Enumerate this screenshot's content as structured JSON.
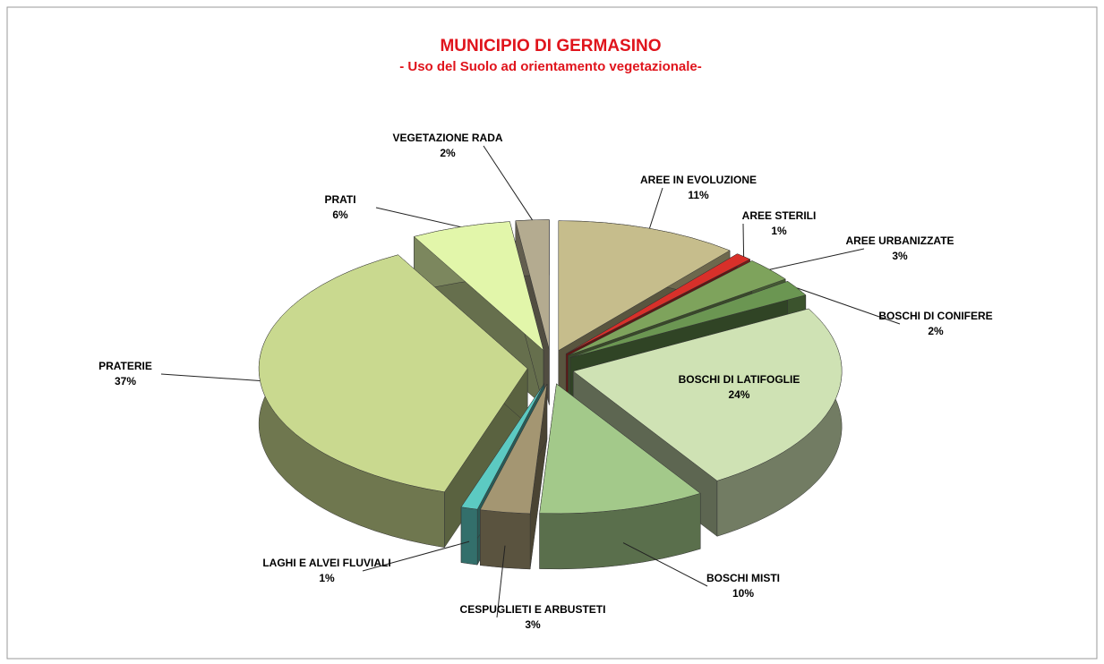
{
  "chart_data": {
    "type": "pie3d",
    "title": "MUNICIPIO DI GERMASINO",
    "subtitle": "- Uso del Suolo ad orientamento vegetazionale-",
    "categories": [
      "AREE IN EVOLUZIONE",
      "AREE STERILI",
      "AREE URBANIZZATE",
      "BOSCHI DI CONIFERE",
      "BOSCHI DI LATIFOGLIE",
      "BOSCHI MISTI",
      "CESPUGLIETI E ARBUSTETI",
      "LAGHI E ALVEI FLUVIALI",
      "PRATERIE",
      "PRATI",
      "VEGETAZIONE RADA"
    ],
    "values": [
      11,
      1,
      3,
      2,
      24,
      10,
      3,
      1,
      37,
      6,
      2
    ],
    "value_labels": [
      "11%",
      "1%",
      "3%",
      "2%",
      "24%",
      "10%",
      "3%",
      "1%",
      "37%",
      "6%",
      "2%"
    ],
    "colors": [
      "#c6bd8c",
      "#d8302a",
      "#7ea35c",
      "#6b9652",
      "#cfe2b4",
      "#a3c98a",
      "#a49672",
      "#5ccac2",
      "#c9d98f",
      "#e2f6aa",
      "#b4ab90"
    ]
  }
}
